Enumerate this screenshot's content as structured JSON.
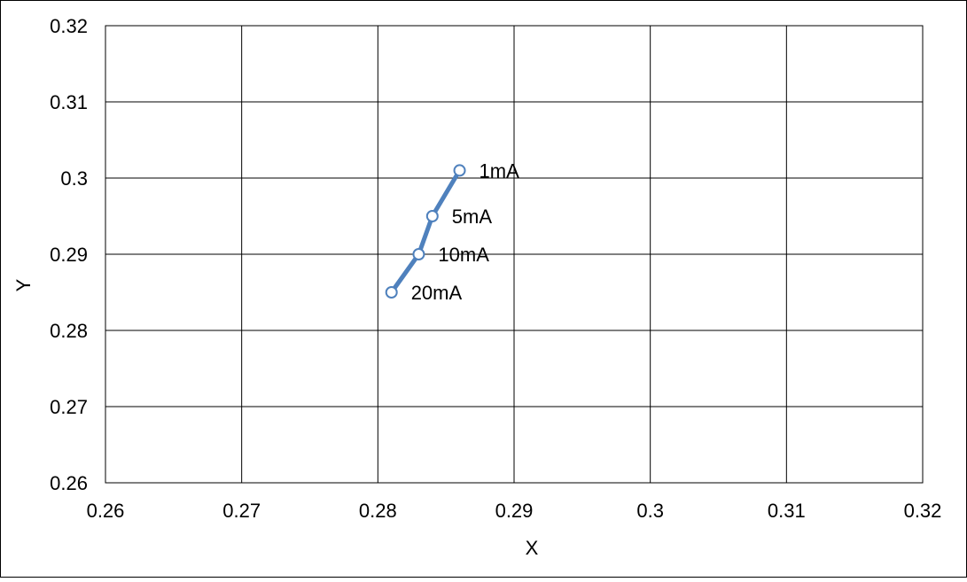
{
  "chart_data": {
    "type": "scatter",
    "title": "",
    "xlabel": "X",
    "ylabel": "Y",
    "xlim": [
      0.26,
      0.32
    ],
    "ylim": [
      0.26,
      0.32
    ],
    "x_ticks": [
      "0.26",
      "0.27",
      "0.28",
      "0.29",
      "0.3",
      "0.31",
      "0.32"
    ],
    "y_ticks": [
      "0.26",
      "0.27",
      "0.28",
      "0.29",
      "0.3",
      "0.31",
      "0.32"
    ],
    "grid": true,
    "legend": "none",
    "series": [
      {
        "points": [
          {
            "x": 0.286,
            "y": 0.301,
            "label": "1mA"
          },
          {
            "x": 0.284,
            "y": 0.295,
            "label": "5mA"
          },
          {
            "x": 0.283,
            "y": 0.29,
            "label": "10mA"
          },
          {
            "x": 0.281,
            "y": 0.285,
            "label": "20mA"
          }
        ]
      }
    ],
    "colors": {
      "series_line": "#4f81bd",
      "marker_fill": "#ffffff",
      "grid": "#000000",
      "frame": "#000000"
    }
  }
}
